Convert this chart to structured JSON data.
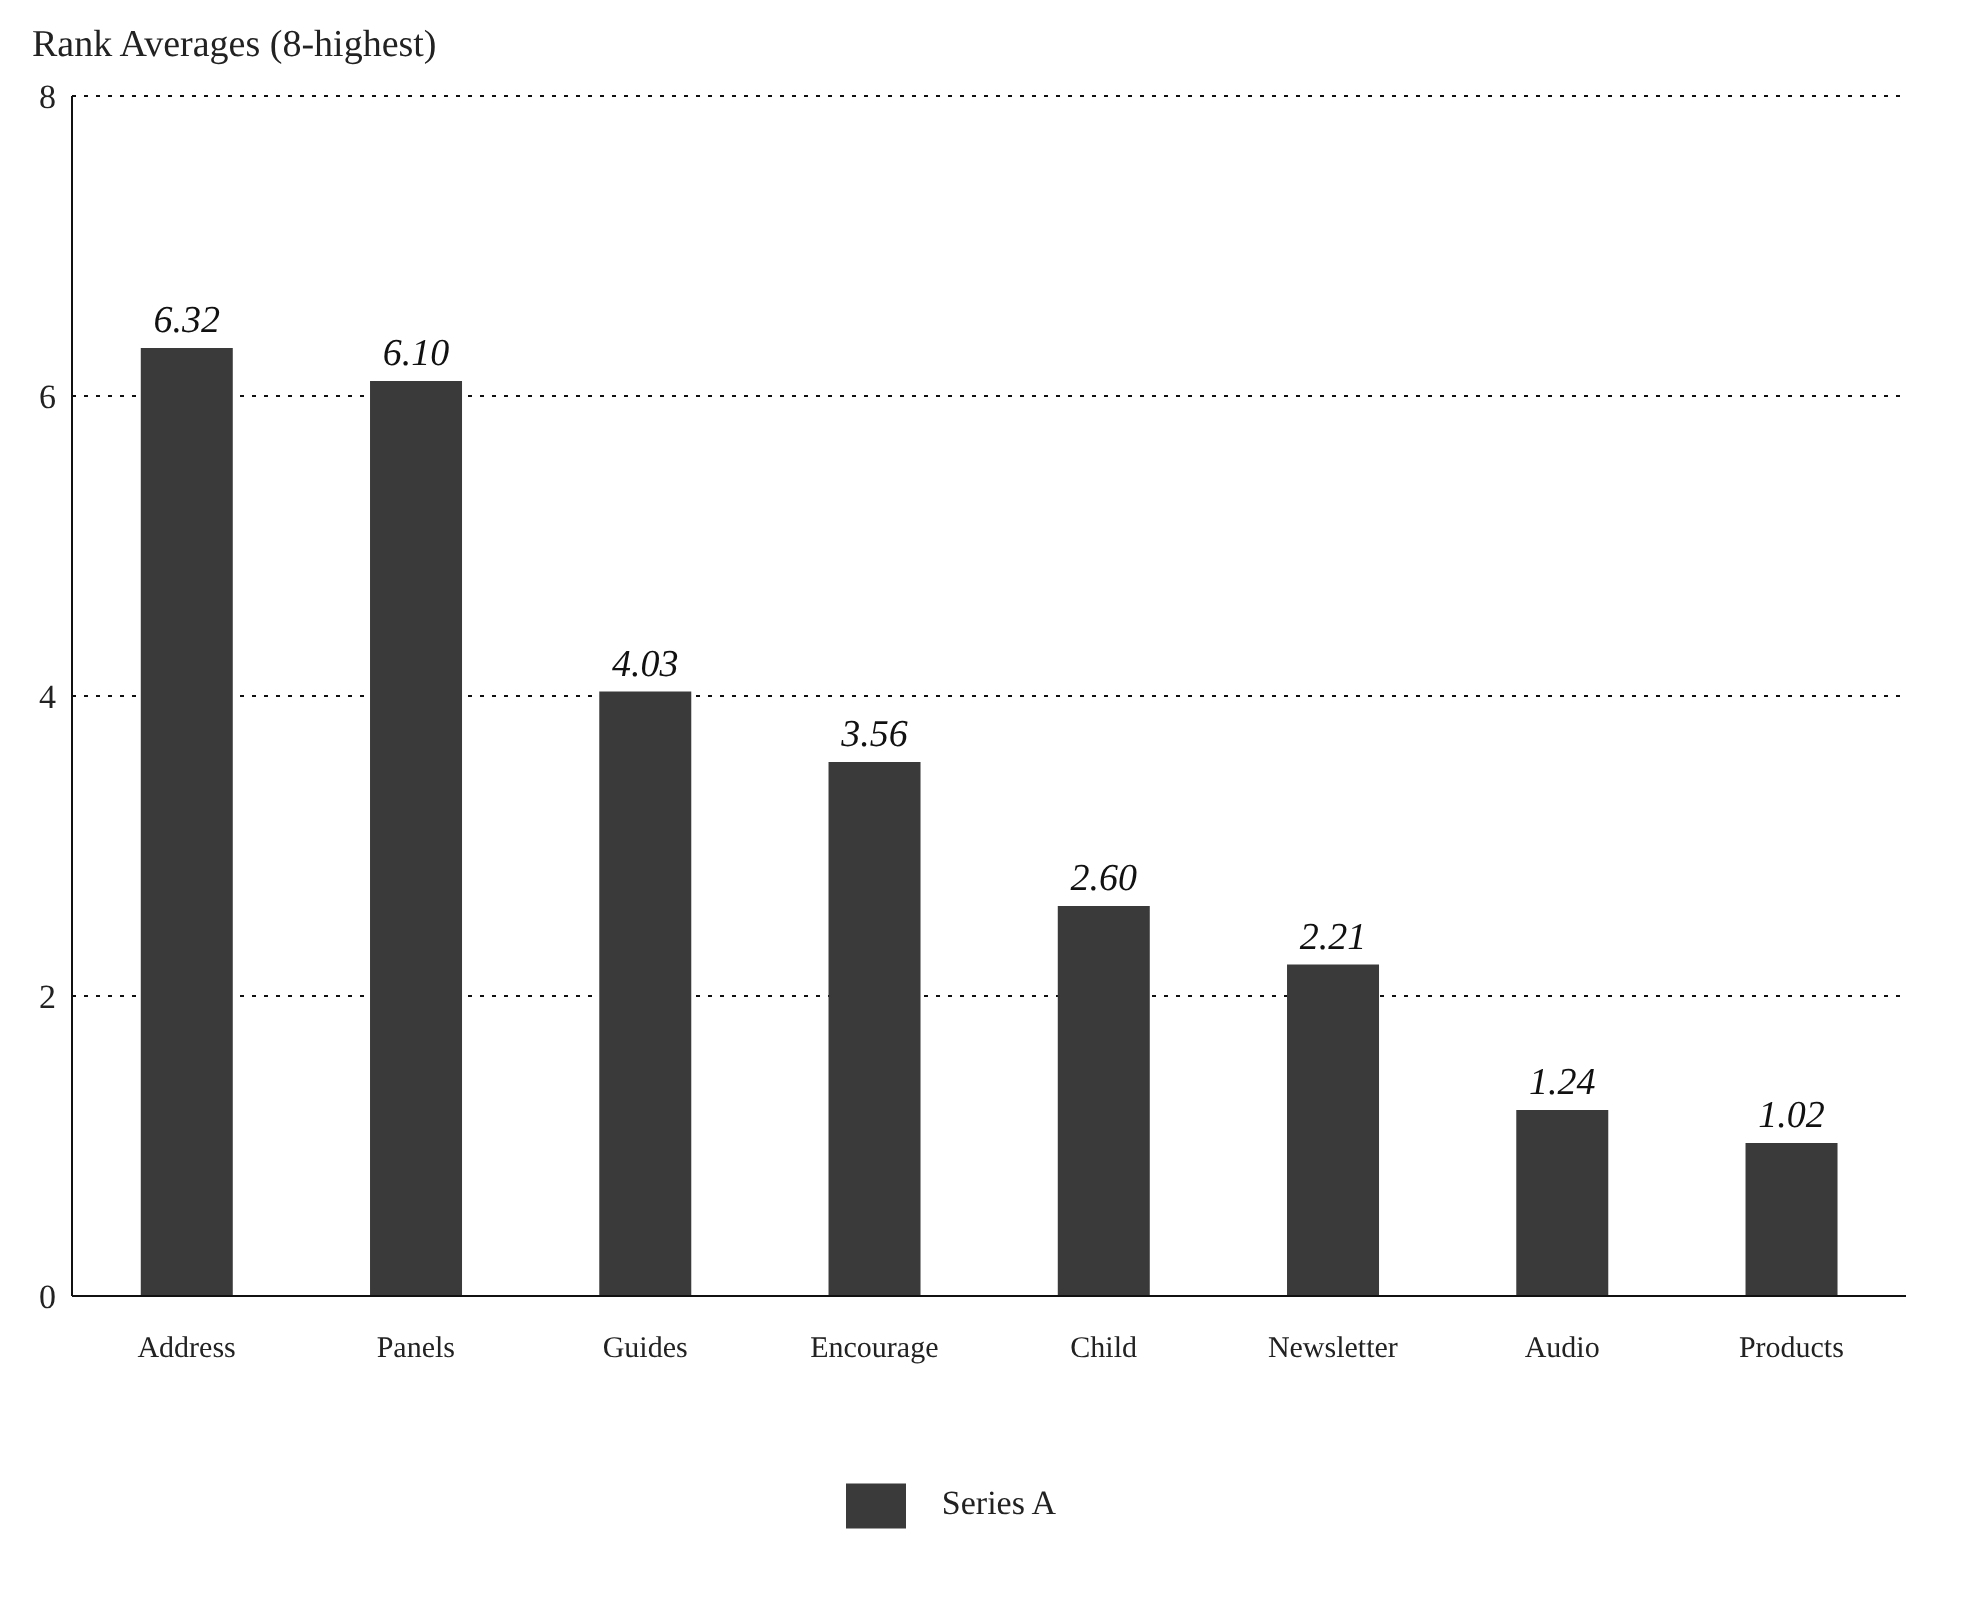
{
  "chart_data": {
    "type": "bar",
    "title": "Rank Averages (8-highest)",
    "categories": [
      "Address",
      "Panels",
      "Guides",
      "Encourage",
      "Child",
      "Newsletter",
      "Audio",
      "Products"
    ],
    "series": [
      {
        "name": "Series A",
        "color": "#3a3a3a",
        "values": [
          6.32,
          6.1,
          4.03,
          3.56,
          2.6,
          2.21,
          1.24,
          1.02
        ]
      }
    ],
    "value_labels": [
      "6.32",
      "6.10",
      "4.03",
      "3.56",
      "2.60",
      "2.21",
      "1.24",
      "1.02"
    ],
    "ylim": [
      0,
      8
    ],
    "yticks": [
      0,
      2,
      4,
      6,
      8
    ],
    "grid": "y",
    "legend": "bottom"
  }
}
